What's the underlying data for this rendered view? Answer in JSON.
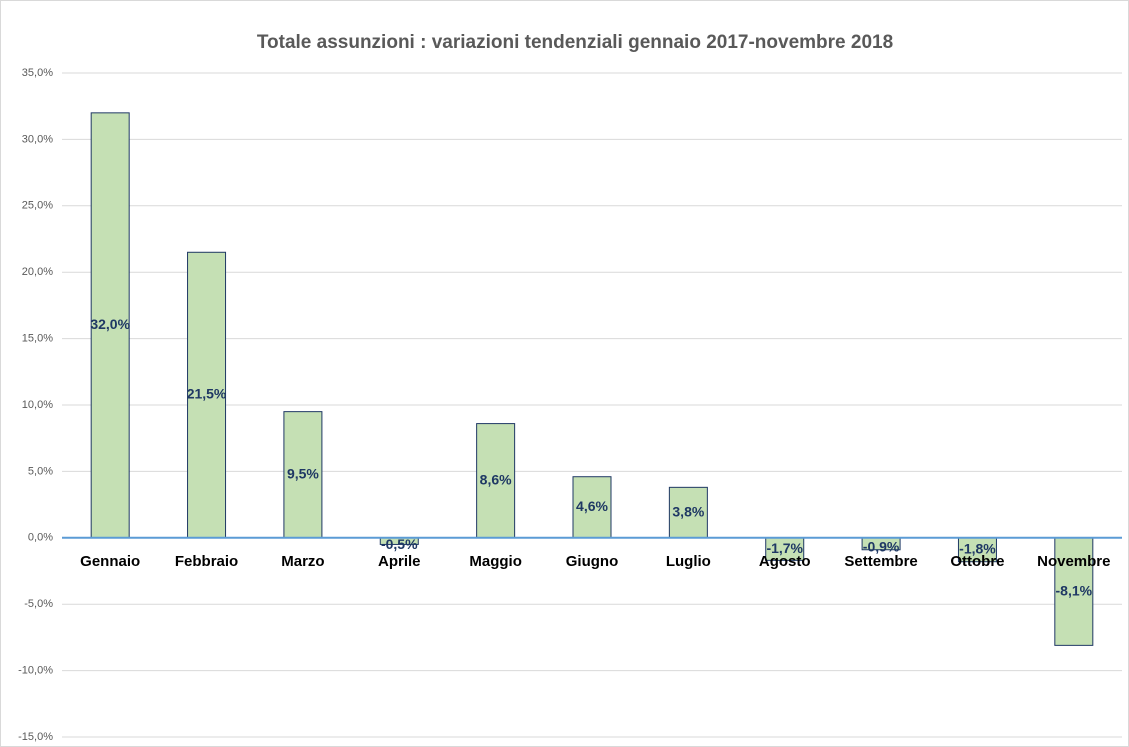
{
  "chart_data": {
    "type": "bar",
    "title": "Totale assunzioni : variazioni tendenziali gennaio 2017-novembre 2018",
    "categories": [
      "Gennaio",
      "Febbraio",
      "Marzo",
      "Aprile",
      "Maggio",
      "Giugno",
      "Luglio",
      "Agosto",
      "Settembre",
      "Ottobre",
      "Novembre"
    ],
    "values": [
      32.0,
      21.5,
      9.5,
      -0.5,
      8.6,
      4.6,
      3.8,
      -1.7,
      -0.9,
      -1.8,
      -8.1
    ],
    "value_labels": [
      "32,0%",
      "21,5%",
      "9,5%",
      "-0,5%",
      "8,6%",
      "4,6%",
      "3,8%",
      "-1,7%",
      "-0,9%",
      "-1,8%",
      "-8,1%"
    ],
    "color": "#c5e0b4",
    "ylim": [
      -15,
      35
    ],
    "yticks": [
      {
        "value": -15,
        "label": "-15,0%"
      },
      {
        "value": -10,
        "label": "-10,0%"
      },
      {
        "value": -5,
        "label": "-5,0%"
      },
      {
        "value": 0,
        "label": "0,0%"
      },
      {
        "value": 5,
        "label": "5,0%"
      },
      {
        "value": 10,
        "label": "10,0%"
      },
      {
        "value": 15,
        "label": "15,0%"
      },
      {
        "value": 20,
        "label": "20,0%"
      },
      {
        "value": 25,
        "label": "25,0%"
      },
      {
        "value": 30,
        "label": "30,0%"
      },
      {
        "value": 35,
        "label": "35,0%"
      }
    ],
    "grid": true
  }
}
